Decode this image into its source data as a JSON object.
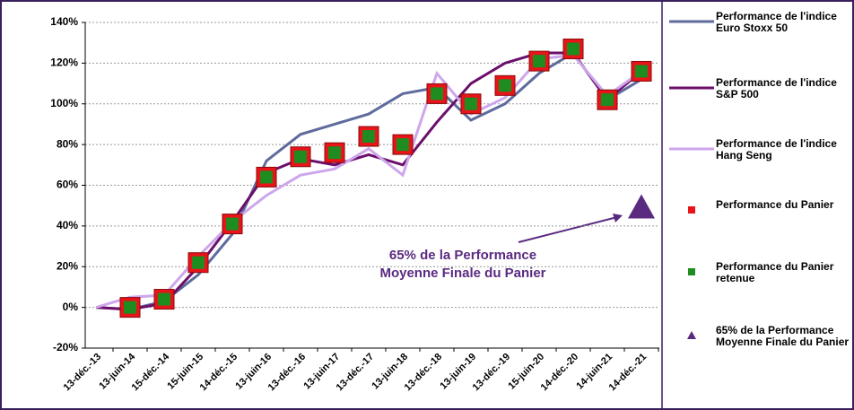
{
  "chart_data": {
    "type": "line",
    "categories": [
      "13-déc.-13",
      "13-juin-14",
      "15-déc.-14",
      "15-juin-15",
      "14-déc.-15",
      "13-juin-16",
      "13-déc.-16",
      "13-juin-17",
      "13-déc.-17",
      "13-juin-18",
      "13-déc.-18",
      "13-juin-19",
      "13-déc.-19",
      "15-juin-20",
      "14-déc.-20",
      "14-juin-21",
      "14-déc.-21"
    ],
    "series": [
      {
        "name": "Performance de l'indice Euro Stoxx 50",
        "kind": "line",
        "color": "#5e6b9c",
        "values": [
          0,
          -1,
          3,
          16,
          36,
          72,
          85,
          90,
          95,
          105,
          108,
          92,
          100,
          115,
          125,
          102,
          112
        ]
      },
      {
        "name": "Performance de l'indice S&P 500",
        "kind": "line",
        "color": "#6b0f6b",
        "values": [
          0,
          -1,
          2,
          20,
          42,
          66,
          73,
          70,
          75,
          70,
          91,
          110,
          120,
          125,
          125,
          102,
          116
        ]
      },
      {
        "name": "Performance de l'indice Hang Seng",
        "kind": "line",
        "color": "#cda6ec",
        "values": [
          0,
          5,
          6,
          25,
          42,
          55,
          65,
          68,
          78,
          65,
          115,
          95,
          103,
          122,
          124,
          104,
          116
        ]
      },
      {
        "name": "Performance du Panier",
        "kind": "square",
        "color": "#e8141a",
        "values": [
          null,
          0,
          4,
          22,
          41,
          64,
          74,
          76,
          84,
          80,
          105,
          100,
          109,
          121,
          127,
          102,
          116
        ]
      },
      {
        "name": "Performance du Panier retenue",
        "kind": "square-small",
        "color": "#1e8c1e",
        "values": [
          null,
          0,
          4,
          22,
          41,
          64,
          74,
          76,
          84,
          80,
          105,
          100,
          109,
          121,
          127,
          102,
          116
        ]
      },
      {
        "name": "65% de la Performance Moyenne Finale du Panier",
        "kind": "triangle",
        "color": "#5a2a80",
        "values": [
          null,
          null,
          null,
          null,
          null,
          null,
          null,
          null,
          null,
          null,
          null,
          null,
          null,
          null,
          null,
          null,
          49
        ]
      }
    ],
    "annotation": [
      "65% de la Performance",
      "Moyenne Finale du Panier"
    ],
    "ylim": [
      -20,
      140
    ],
    "yticks": [
      {
        "value": -20,
        "label": "-20%"
      },
      {
        "value": 0,
        "label": "0%"
      },
      {
        "value": 20,
        "label": "20%"
      },
      {
        "value": 40,
        "label": "40%"
      },
      {
        "value": 60,
        "label": "60%"
      },
      {
        "value": 80,
        "label": "80%"
      },
      {
        "value": 100,
        "label": "100%"
      },
      {
        "value": 120,
        "label": "120%"
      },
      {
        "value": 140,
        "label": "140%"
      }
    ],
    "grid": true
  }
}
